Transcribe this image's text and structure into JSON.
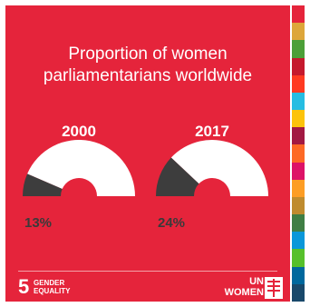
{
  "title_line1": "Proportion of women",
  "title_line2": "parliamentarians worldwide",
  "chart_data": {
    "type": "pie",
    "title": "Proportion of women parliamentarians worldwide",
    "semi_donut": true,
    "charts": [
      {
        "label": "2000",
        "percent_label": "13%",
        "value": 13
      },
      {
        "label": "2017",
        "percent_label": "24%",
        "value": 24
      }
    ],
    "colors": {
      "women": "#3d3d3d",
      "remainder": "#ffffff"
    }
  },
  "footer": {
    "goal_number": "5",
    "goal_line1": "GENDER",
    "goal_line2": "EQUALITY",
    "brand_line1": "UN",
    "brand_line2": "WOMEN"
  },
  "colors": {
    "background": "#e5243b",
    "sdg_stripe": [
      "#e5243b",
      "#dda63a",
      "#4c9f38",
      "#c5192d",
      "#ff3a21",
      "#26bde2",
      "#fcc30b",
      "#a21942",
      "#fd6925",
      "#dd1367",
      "#fd9d24",
      "#bf8b2e",
      "#3f7e44",
      "#0a97d9",
      "#56c02b",
      "#00689d",
      "#19486a"
    ]
  }
}
